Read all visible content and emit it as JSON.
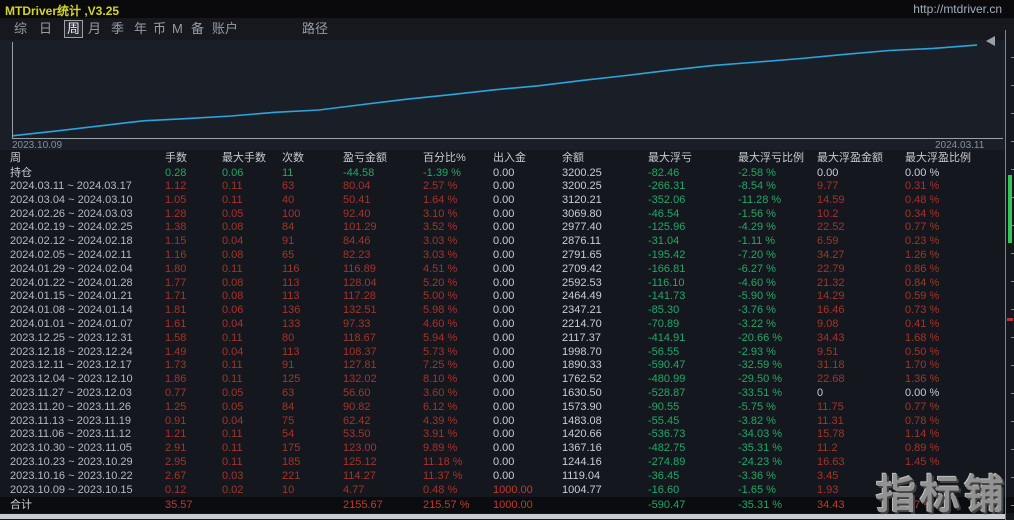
{
  "title_bar": {
    "title": "MTDriver统计 ,V3.25",
    "url": "http://mtdriver.cn"
  },
  "menu": {
    "items": [
      "综",
      "日",
      "周",
      "月",
      "季",
      "年",
      "币",
      "M",
      "备",
      "账户",
      "路径"
    ],
    "active": "周"
  },
  "chart_data": {
    "type": "line",
    "title": "",
    "xlabel": "",
    "ylabel": "",
    "x_start_label": "2023.10.09",
    "x_end_label": "2024.03.11",
    "x": [
      "2023.10.15",
      "2023.10.22",
      "2023.10.29",
      "2023.11.05",
      "2023.11.12",
      "2023.11.19",
      "2023.11.26",
      "2023.12.03",
      "2023.12.10",
      "2023.12.17",
      "2023.12.24",
      "2023.12.31",
      "2024.01.07",
      "2024.01.14",
      "2024.01.21",
      "2024.01.28",
      "2024.02.04",
      "2024.02.11",
      "2024.02.18",
      "2024.02.25",
      "2024.03.03",
      "2024.03.10",
      "2024.03.17"
    ],
    "series": [
      {
        "name": "余额",
        "values": [
          1004.77,
          1119.04,
          1244.16,
          1367.16,
          1420.66,
          1483.08,
          1573.9,
          1630.5,
          1762.52,
          1890.33,
          1998.7,
          2117.37,
          2214.7,
          2347.21,
          2464.49,
          2592.53,
          2709.42,
          2791.65,
          2876.11,
          2977.4,
          3069.8,
          3120.21,
          3200.25
        ]
      }
    ],
    "ylim": [
      1000,
      3300
    ],
    "grid": false,
    "legend_position": "none",
    "line_color": "#2aa5de"
  },
  "table": {
    "headers": [
      "周",
      "手数",
      "最大手数",
      "次数",
      "盈亏金额",
      "百分比%",
      "出入金",
      "余额",
      "最大浮亏",
      "最大浮亏比例",
      "最大浮盈金额",
      "最大浮盈比例"
    ],
    "position_row": {
      "label": "持仓",
      "values": [
        "0.28",
        "0.06",
        "11",
        "-44.58",
        "-1.39 %",
        "0.00",
        "3200.25",
        "-82.46",
        "-2.58 %",
        "0.00",
        "0.00 %"
      ],
      "colors": [
        "green",
        "green",
        "green",
        "green",
        "green",
        "white",
        "white",
        "green",
        "green",
        "white",
        "white"
      ]
    },
    "column_value_colors": [
      "red",
      "red",
      "red",
      "red",
      "red",
      "white",
      "white",
      "green",
      "green",
      "red",
      "red"
    ],
    "rows": [
      [
        "2024.03.11 ~ 2024.03.17",
        "1.12",
        "0.11",
        "63",
        "80.04",
        "2.57 %",
        "0.00",
        "3200.25",
        "-266.31",
        "-8.54 %",
        "9.77",
        "0.31 %"
      ],
      [
        "2024.03.04 ~ 2024.03.10",
        "1.05",
        "0.11",
        "40",
        "50.41",
        "1.64 %",
        "0.00",
        "3120.21",
        "-352.06",
        "-11.28 %",
        "14.59",
        "0.48 %"
      ],
      [
        "2024.02.26 ~ 2024.03.03",
        "1.28",
        "0.05",
        "100",
        "92.40",
        "3.10 %",
        "0.00",
        "3069.80",
        "-46.54",
        "-1.56 %",
        "10.2",
        "0.34 %"
      ],
      [
        "2024.02.19 ~ 2024.02.25",
        "1.38",
        "0.08",
        "84",
        "101.29",
        "3.52 %",
        "0.00",
        "2977.40",
        "-125.96",
        "-4.29 %",
        "22.52",
        "0.77 %"
      ],
      [
        "2024.02.12 ~ 2024.02.18",
        "1.15",
        "0.04",
        "91",
        "84.46",
        "3.03 %",
        "0.00",
        "2876.11",
        "-31.04",
        "-1.11 %",
        "6.59",
        "0.23 %"
      ],
      [
        "2024.02.05 ~ 2024.02.11",
        "1.16",
        "0.08",
        "65",
        "82.23",
        "3.03 %",
        "0.00",
        "2791.65",
        "-195.42",
        "-7.20 %",
        "34.27",
        "1.26 %"
      ],
      [
        "2024.01.29 ~ 2024.02.04",
        "1.80",
        "0.11",
        "116",
        "116.89",
        "4.51 %",
        "0.00",
        "2709.42",
        "-166.81",
        "-6.27 %",
        "22.79",
        "0.86 %"
      ],
      [
        "2024.01.22 ~ 2024.01.28",
        "1.77",
        "0.08",
        "113",
        "128.04",
        "5.20 %",
        "0.00",
        "2592.53",
        "-116.10",
        "-4.60 %",
        "21.32",
        "0.84 %"
      ],
      [
        "2024.01.15 ~ 2024.01.21",
        "1.71",
        "0.08",
        "113",
        "117.28",
        "5.00 %",
        "0.00",
        "2464.49",
        "-141.73",
        "-5.90 %",
        "14.29",
        "0.59 %"
      ],
      [
        "2024.01.08 ~ 2024.01.14",
        "1.81",
        "0.06",
        "136",
        "132.51",
        "5.98 %",
        "0.00",
        "2347.21",
        "-85.30",
        "-3.76 %",
        "16.46",
        "0.73 %"
      ],
      [
        "2024.01.01 ~ 2024.01.07",
        "1.61",
        "0.04",
        "133",
        "97.33",
        "4.60 %",
        "0.00",
        "2214.70",
        "-70.89",
        "-3.22 %",
        "9.08",
        "0.41 %"
      ],
      [
        "2023.12.25 ~ 2023.12.31",
        "1.58",
        "0.11",
        "80",
        "118.67",
        "5.94 %",
        "0.00",
        "2117.37",
        "-414.91",
        "-20.66 %",
        "34.43",
        "1.68 %"
      ],
      [
        "2023.12.18 ~ 2023.12.24",
        "1.49",
        "0.04",
        "113",
        "108.37",
        "5.73 %",
        "0.00",
        "1998.70",
        "-56.55",
        "-2.93 %",
        "9.51",
        "0.50 %"
      ],
      [
        "2023.12.11 ~ 2023.12.17",
        "1.73",
        "0.11",
        "91",
        "127.81",
        "7.25 %",
        "0.00",
        "1890.33",
        "-590.47",
        "-32.59 %",
        "31.18",
        "1.70 %"
      ],
      [
        "2023.12.04 ~ 2023.12.10",
        "1.86",
        "0.11",
        "125",
        "132.02",
        "8.10 %",
        "0.00",
        "1762.52",
        "-480.99",
        "-29.50 %",
        "22.68",
        "1.36 %"
      ],
      [
        "2023.11.27 ~ 2023.12.03",
        "0.77",
        "0.05",
        "63",
        "56.60",
        "3.60 %",
        "0.00",
        "1630.50",
        "-528.87",
        "-33.51 %",
        "0",
        "0.00 %"
      ],
      [
        "2023.11.20 ~ 2023.11.26",
        "1.25",
        "0.05",
        "84",
        "90.82",
        "6.12 %",
        "0.00",
        "1573.90",
        "-90.55",
        "-5.75 %",
        "11.75",
        "0.77 %"
      ],
      [
        "2023.11.13 ~ 2023.11.19",
        "0.91",
        "0.04",
        "75",
        "62.42",
        "4.39 %",
        "0.00",
        "1483.08",
        "-55.45",
        "-3.82 %",
        "11.31",
        "0.78 %"
      ],
      [
        "2023.11.06 ~ 2023.11.12",
        "1.21",
        "0.11",
        "54",
        "53.50",
        "3.91 %",
        "0.00",
        "1420.66",
        "-536.73",
        "-34.03 %",
        "15.78",
        "1.14 %"
      ],
      [
        "2023.10.30 ~ 2023.11.05",
        "2.91",
        "0.11",
        "175",
        "123.00",
        "9.89 %",
        "0.00",
        "1367.16",
        "-482.75",
        "-35.31 %",
        "11.2",
        "0.89 %"
      ],
      [
        "2023.10.23 ~ 2023.10.29",
        "2.95",
        "0.11",
        "185",
        "125.12",
        "11.18 %",
        "0.00",
        "1244.16",
        "-274.89",
        "-24.23 %",
        "16.63",
        "1.45 %"
      ],
      [
        "2023.10.16 ~ 2023.10.22",
        "2.67",
        "0.03",
        "221",
        "114.27",
        "11.37 %",
        "0.00",
        "1119.04",
        "-36.45",
        "-3.36 %",
        "3.45",
        ""
      ],
      [
        "2023.10.09 ~ 2023.10.15",
        "0.12",
        "0.02",
        "10",
        "4.77",
        "0.48 %",
        "1000.00",
        "1004.77",
        "-16.60",
        "-1.65 %",
        "1.93",
        ""
      ]
    ],
    "color_overrides": [
      {
        "row": 15,
        "col": 10,
        "color": "white"
      },
      {
        "row": 15,
        "col": 11,
        "color": "white"
      },
      {
        "row": 22,
        "col": 6,
        "color": "bright_red"
      }
    ],
    "total_row": {
      "label": "合计",
      "values": [
        "35.57",
        "",
        "",
        "2155.67",
        "215.57 %",
        "1000.00",
        "",
        "-590.47",
        "-35.31 %",
        "34.43",
        "1.7 %"
      ],
      "colors": [
        "bright_red",
        "",
        "",
        "bright_red",
        "bright_red",
        "bright_red",
        "",
        "green",
        "green",
        "bright_red",
        "bright_red"
      ]
    }
  },
  "watermark": "指标铺",
  "colors": {
    "accent_line": "#2aa5de",
    "profit_red": "#a5342a",
    "drawdown_green": "#23a866",
    "title_yellow": "#d4d42a",
    "scroll_thumb_green": "#35c657"
  }
}
